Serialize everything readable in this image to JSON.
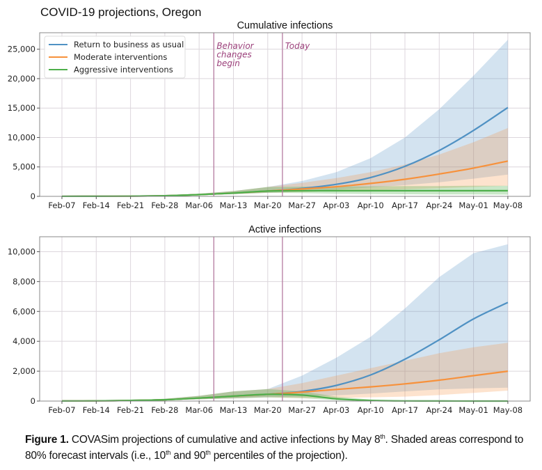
{
  "figure": {
    "title": "COVID-19 projections, Oregon"
  },
  "caption": {
    "label": "Figure 1.",
    "text_a": " COVASim projections of cumulative and active infections by May 8",
    "sup_a": "th",
    "text_b": ". Shaded areas correspond to 80% forecast intervals (i.e., 10",
    "sup_b": "th",
    "text_c": " and 90",
    "sup_c": "th",
    "text_d": " percentiles of the projection)."
  },
  "colors": {
    "blue": "#4f91c3",
    "orange": "#f7913b",
    "green": "#4daf4a",
    "annotation": "#9b3f7a"
  },
  "chart_data": [
    {
      "type": "line",
      "title": "Cumulative infections",
      "xlabel": "",
      "ylabel": "",
      "x": [
        "Feb-07",
        "Feb-14",
        "Feb-21",
        "Feb-28",
        "Mar-06",
        "Mar-13",
        "Mar-20",
        "Mar-27",
        "Apr-03",
        "Apr-10",
        "Apr-17",
        "Apr-24",
        "May-01",
        "May-08"
      ],
      "x_ticks": [
        "Feb-07",
        "Feb-14",
        "Feb-21",
        "Feb-28",
        "Mar-06",
        "Mar-13",
        "Mar-20",
        "Mar-27",
        "Apr-03",
        "Apr-10",
        "Apr-17",
        "Apr-24",
        "May-01",
        "May-08"
      ],
      "y_ticks": [
        0,
        5000,
        10000,
        15000,
        20000,
        25000
      ],
      "y_tick_labels": [
        "0",
        "5,000",
        "10,000",
        "15,000",
        "20,000",
        "25,000"
      ],
      "ylim": [
        0,
        27800
      ],
      "grid": true,
      "legend": "top-left",
      "vlines": [
        {
          "x": "Mar-09",
          "label": "Behavior changes begin",
          "label_lines": [
            "Behavior",
            "changes",
            "begin"
          ]
        },
        {
          "x": "Mar-23",
          "label": "Today",
          "label_lines": [
            "Today"
          ]
        }
      ],
      "series": [
        {
          "name": "Return to business as usual",
          "color": "#4f91c3",
          "values": [
            5,
            15,
            40,
            110,
            300,
            560,
            900,
            1350,
            2050,
            3200,
            5100,
            7800,
            11200,
            15100
          ],
          "lower": [
            5,
            10,
            30,
            80,
            200,
            380,
            600,
            850,
            1150,
            1500,
            1900,
            2400,
            3000,
            3700
          ],
          "upper": [
            8,
            25,
            60,
            170,
            450,
            900,
            1600,
            2600,
            4100,
            6500,
            10000,
            14800,
            20500,
            26600
          ]
        },
        {
          "name": "Moderate interventions",
          "color": "#f7913b",
          "values": [
            5,
            15,
            40,
            110,
            300,
            560,
            900,
            1250,
            1650,
            2200,
            2900,
            3800,
            4800,
            6000
          ],
          "lower": [
            5,
            10,
            30,
            80,
            200,
            380,
            600,
            750,
            900,
            1050,
            1200,
            1400,
            1600,
            1800
          ],
          "upper": [
            8,
            25,
            60,
            170,
            450,
            900,
            1600,
            2300,
            3100,
            4100,
            5400,
            7100,
            9200,
            11600
          ]
        },
        {
          "name": "Aggressive interventions",
          "color": "#4daf4a",
          "values": [
            5,
            15,
            40,
            110,
            300,
            560,
            900,
            950,
            960,
            960,
            960,
            960,
            960,
            960
          ],
          "lower": [
            5,
            10,
            30,
            80,
            200,
            380,
            600,
            550,
            450,
            400,
            350,
            330,
            320,
            300
          ],
          "upper": [
            8,
            25,
            60,
            170,
            450,
            900,
            1600,
            1650,
            1700,
            1700,
            1750,
            1750,
            1800,
            1800
          ]
        }
      ]
    },
    {
      "type": "line",
      "title": "Active infections",
      "xlabel": "",
      "ylabel": "",
      "x": [
        "Feb-07",
        "Feb-14",
        "Feb-21",
        "Feb-28",
        "Mar-06",
        "Mar-13",
        "Mar-20",
        "Mar-27",
        "Apr-03",
        "Apr-10",
        "Apr-17",
        "Apr-24",
        "May-01",
        "May-08"
      ],
      "x_ticks": [
        "Feb-07",
        "Feb-14",
        "Feb-21",
        "Feb-28",
        "Mar-06",
        "Mar-13",
        "Mar-20",
        "Mar-27",
        "Apr-03",
        "Apr-10",
        "Apr-17",
        "Apr-24",
        "May-01",
        "May-08"
      ],
      "y_ticks": [
        0,
        2000,
        4000,
        6000,
        8000,
        10000
      ],
      "y_tick_labels": [
        "0",
        "2,000",
        "4,000",
        "6,000",
        "8,000",
        "10,000"
      ],
      "ylim": [
        0,
        11000
      ],
      "grid": true,
      "legend": "none",
      "vlines": [
        {
          "x": "Mar-09",
          "label": ""
        },
        {
          "x": "Mar-23",
          "label": ""
        }
      ],
      "series": [
        {
          "name": "Return to business as usual",
          "color": "#4f91c3",
          "values": [
            5,
            15,
            40,
            90,
            200,
            330,
            450,
            650,
            1050,
            1750,
            2800,
            4100,
            5500,
            6600
          ],
          "lower": [
            5,
            10,
            30,
            60,
            120,
            180,
            250,
            300,
            380,
            500,
            650,
            780,
            850,
            900
          ],
          "upper": [
            8,
            25,
            60,
            150,
            350,
            650,
            800,
            1700,
            2900,
            4300,
            6200,
            8300,
            9900,
            10500
          ]
        },
        {
          "name": "Moderate interventions",
          "color": "#f7913b",
          "values": [
            5,
            15,
            40,
            90,
            200,
            330,
            450,
            600,
            780,
            950,
            1150,
            1400,
            1700,
            2000
          ],
          "lower": [
            5,
            10,
            30,
            60,
            120,
            180,
            250,
            200,
            200,
            250,
            300,
            400,
            550,
            700
          ],
          "upper": [
            8,
            25,
            60,
            150,
            350,
            650,
            800,
            1200,
            1700,
            2200,
            2700,
            3200,
            3600,
            3900
          ]
        },
        {
          "name": "Aggressive interventions",
          "color": "#4daf4a",
          "values": [
            5,
            15,
            40,
            90,
            200,
            330,
            450,
            400,
            150,
            40,
            10,
            5,
            2,
            1
          ],
          "lower": [
            5,
            10,
            30,
            60,
            120,
            180,
            250,
            200,
            60,
            10,
            3,
            1,
            0,
            0
          ],
          "upper": [
            8,
            25,
            60,
            150,
            350,
            650,
            800,
            650,
            300,
            100,
            40,
            15,
            8,
            5
          ]
        }
      ]
    }
  ]
}
